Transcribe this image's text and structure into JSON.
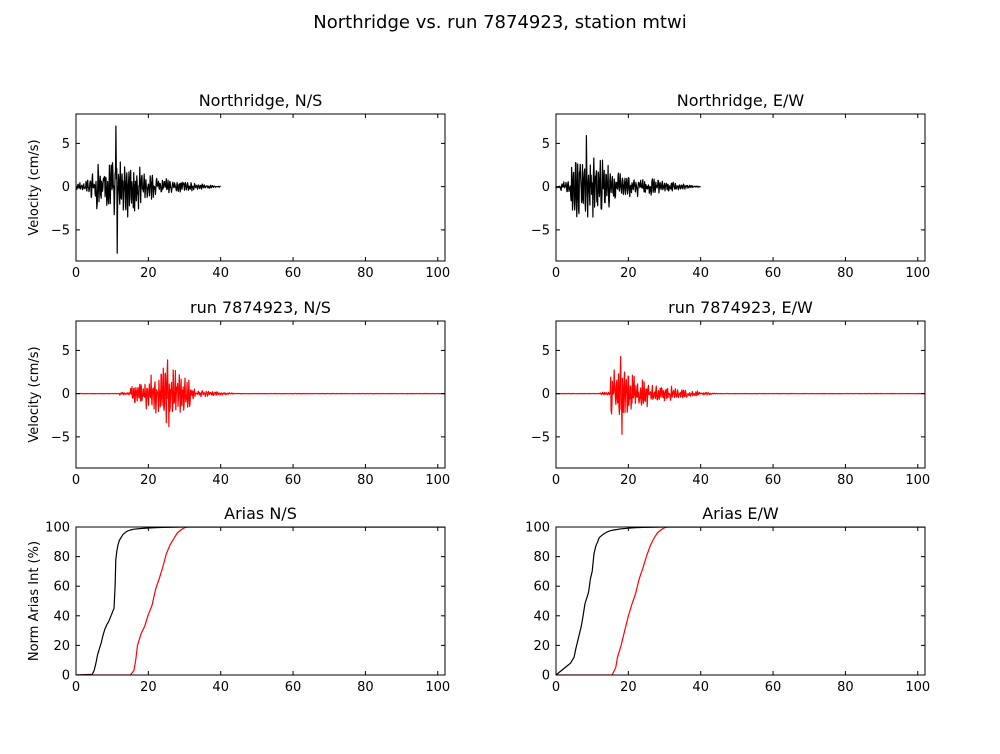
{
  "figure": {
    "suptitle": "Northridge vs. run 7874923, station mtwi"
  },
  "chart_data": [
    {
      "type": "line",
      "title": "Northridge, N/S",
      "ylabel": "Velocity (cm/s)",
      "xlabel": "",
      "xlim": [
        0,
        102
      ],
      "ylim": [
        -8.6,
        8.4
      ],
      "xticks": [
        0,
        20,
        40,
        60,
        80,
        100
      ],
      "yticks": [
        -5,
        0,
        5
      ],
      "grid": false,
      "series": [
        {
          "color": "#000000",
          "x_range": [
            0,
            40
          ],
          "peak_x": 11.2,
          "max": 7.0,
          "min": -7.7,
          "coda_amplitude": 1.0,
          "coda_end": 40
        }
      ]
    },
    {
      "type": "line",
      "title": "Northridge, E/W",
      "ylabel": "",
      "xlabel": "",
      "xlim": [
        0,
        102
      ],
      "ylim": [
        -8.6,
        8.4
      ],
      "xticks": [
        0,
        20,
        40,
        60,
        80,
        100
      ],
      "yticks": [
        -5,
        0,
        5
      ],
      "grid": false,
      "series": [
        {
          "color": "#000000",
          "x_range": [
            0,
            40
          ],
          "peak_x": 8.5,
          "max": 5.9,
          "min": -3.5,
          "coda_amplitude": 1.2,
          "coda_end": 40
        }
      ]
    },
    {
      "type": "line",
      "title": "run 7874923, N/S",
      "ylabel": "Velocity (cm/s)",
      "xlabel": "",
      "xlim": [
        0,
        102
      ],
      "ylim": [
        -8.6,
        8.4
      ],
      "xticks": [
        0,
        20,
        40,
        60,
        80,
        100
      ],
      "yticks": [
        -5,
        0,
        5
      ],
      "grid": false,
      "series": [
        {
          "color": "#ff0000",
          "x_range": [
            0,
            102
          ],
          "onset": 15,
          "peak_x": 25.5,
          "max": 3.9,
          "min": -3.8,
          "strong_end": 33,
          "coda_amplitude": 0.4,
          "coda_end": 45
        }
      ]
    },
    {
      "type": "line",
      "title": "run 7874923, E/W",
      "ylabel": "",
      "xlabel": "",
      "xlim": [
        0,
        102
      ],
      "ylim": [
        -8.6,
        8.4
      ],
      "xticks": [
        0,
        20,
        40,
        60,
        80,
        100
      ],
      "yticks": [
        -5,
        0,
        5
      ],
      "grid": false,
      "series": [
        {
          "color": "#ff0000",
          "x_range": [
            0,
            102
          ],
          "onset": 15,
          "peak_x": 18,
          "max": 4.3,
          "min": -4.7,
          "strong_end": 32,
          "coda_amplitude": 0.6,
          "coda_end": 45
        }
      ]
    },
    {
      "type": "line",
      "title": "Arias N/S",
      "ylabel": "Norm Arias Int (%)",
      "xlabel": "",
      "xlim": [
        0,
        102
      ],
      "ylim": [
        0,
        100
      ],
      "xticks": [
        0,
        20,
        40,
        60,
        80,
        100
      ],
      "yticks": [
        0,
        20,
        40,
        60,
        80,
        100
      ],
      "grid": false,
      "series": [
        {
          "color": "#000000",
          "x": [
            0,
            4.5,
            5,
            5.5,
            6,
            6.5,
            7,
            7.5,
            8,
            8.5,
            9,
            9.5,
            10,
            10.5,
            10.8,
            11,
            11.3,
            11.6,
            12,
            13,
            14,
            15,
            16,
            18,
            20,
            22,
            24,
            26,
            28,
            30,
            33
          ],
          "y": [
            0,
            0.5,
            3,
            8,
            14,
            18,
            22,
            27,
            31,
            34,
            36,
            39,
            42,
            45,
            60,
            78,
            84,
            88,
            91,
            95,
            97,
            98,
            98.5,
            99,
            99.3,
            99.5,
            99.7,
            99.8,
            99.9,
            100,
            100
          ]
        },
        {
          "color": "#ff0000",
          "x": [
            0,
            15,
            16,
            16.5,
            17,
            18,
            19,
            20,
            21,
            22,
            23,
            24,
            25,
            26,
            27,
            28,
            29,
            30,
            31
          ],
          "y": [
            0,
            0,
            3,
            10,
            20,
            28,
            33,
            41,
            47,
            58,
            65,
            73,
            82,
            88,
            92,
            96,
            98,
            99.5,
            100
          ]
        }
      ]
    },
    {
      "type": "line",
      "title": "Arias E/W",
      "ylabel": "",
      "xlabel": "",
      "xlim": [
        0,
        102
      ],
      "ylim": [
        0,
        100
      ],
      "xticks": [
        0,
        20,
        40,
        60,
        80,
        100
      ],
      "yticks": [
        0,
        20,
        40,
        60,
        80,
        100
      ],
      "grid": false,
      "series": [
        {
          "color": "#000000",
          "x": [
            0,
            1,
            2,
            3,
            4,
            5,
            5.5,
            6,
            6.5,
            7,
            7.5,
            8,
            8.5,
            9,
            9.5,
            10,
            10.5,
            11,
            11.5,
            12,
            13,
            14,
            15,
            16,
            18,
            20,
            22,
            24,
            26,
            28,
            30,
            33
          ],
          "y": [
            0,
            2,
            4,
            6,
            8,
            12,
            18,
            23,
            28,
            33,
            40,
            48,
            52,
            56,
            65,
            70,
            82,
            87,
            90,
            93,
            95,
            96.5,
            97.5,
            98,
            98.8,
            99.2,
            99.5,
            99.7,
            99.8,
            99.9,
            100,
            100
          ]
        },
        {
          "color": "#ff0000",
          "x": [
            0,
            15.5,
            16.5,
            17,
            18,
            19,
            20,
            21,
            22,
            23,
            24,
            25,
            26,
            27,
            28,
            29,
            30,
            31
          ],
          "y": [
            0,
            0,
            5,
            12,
            20,
            30,
            40,
            48,
            55,
            65,
            72,
            80,
            87,
            92,
            96,
            98,
            99.5,
            100
          ]
        }
      ]
    }
  ]
}
